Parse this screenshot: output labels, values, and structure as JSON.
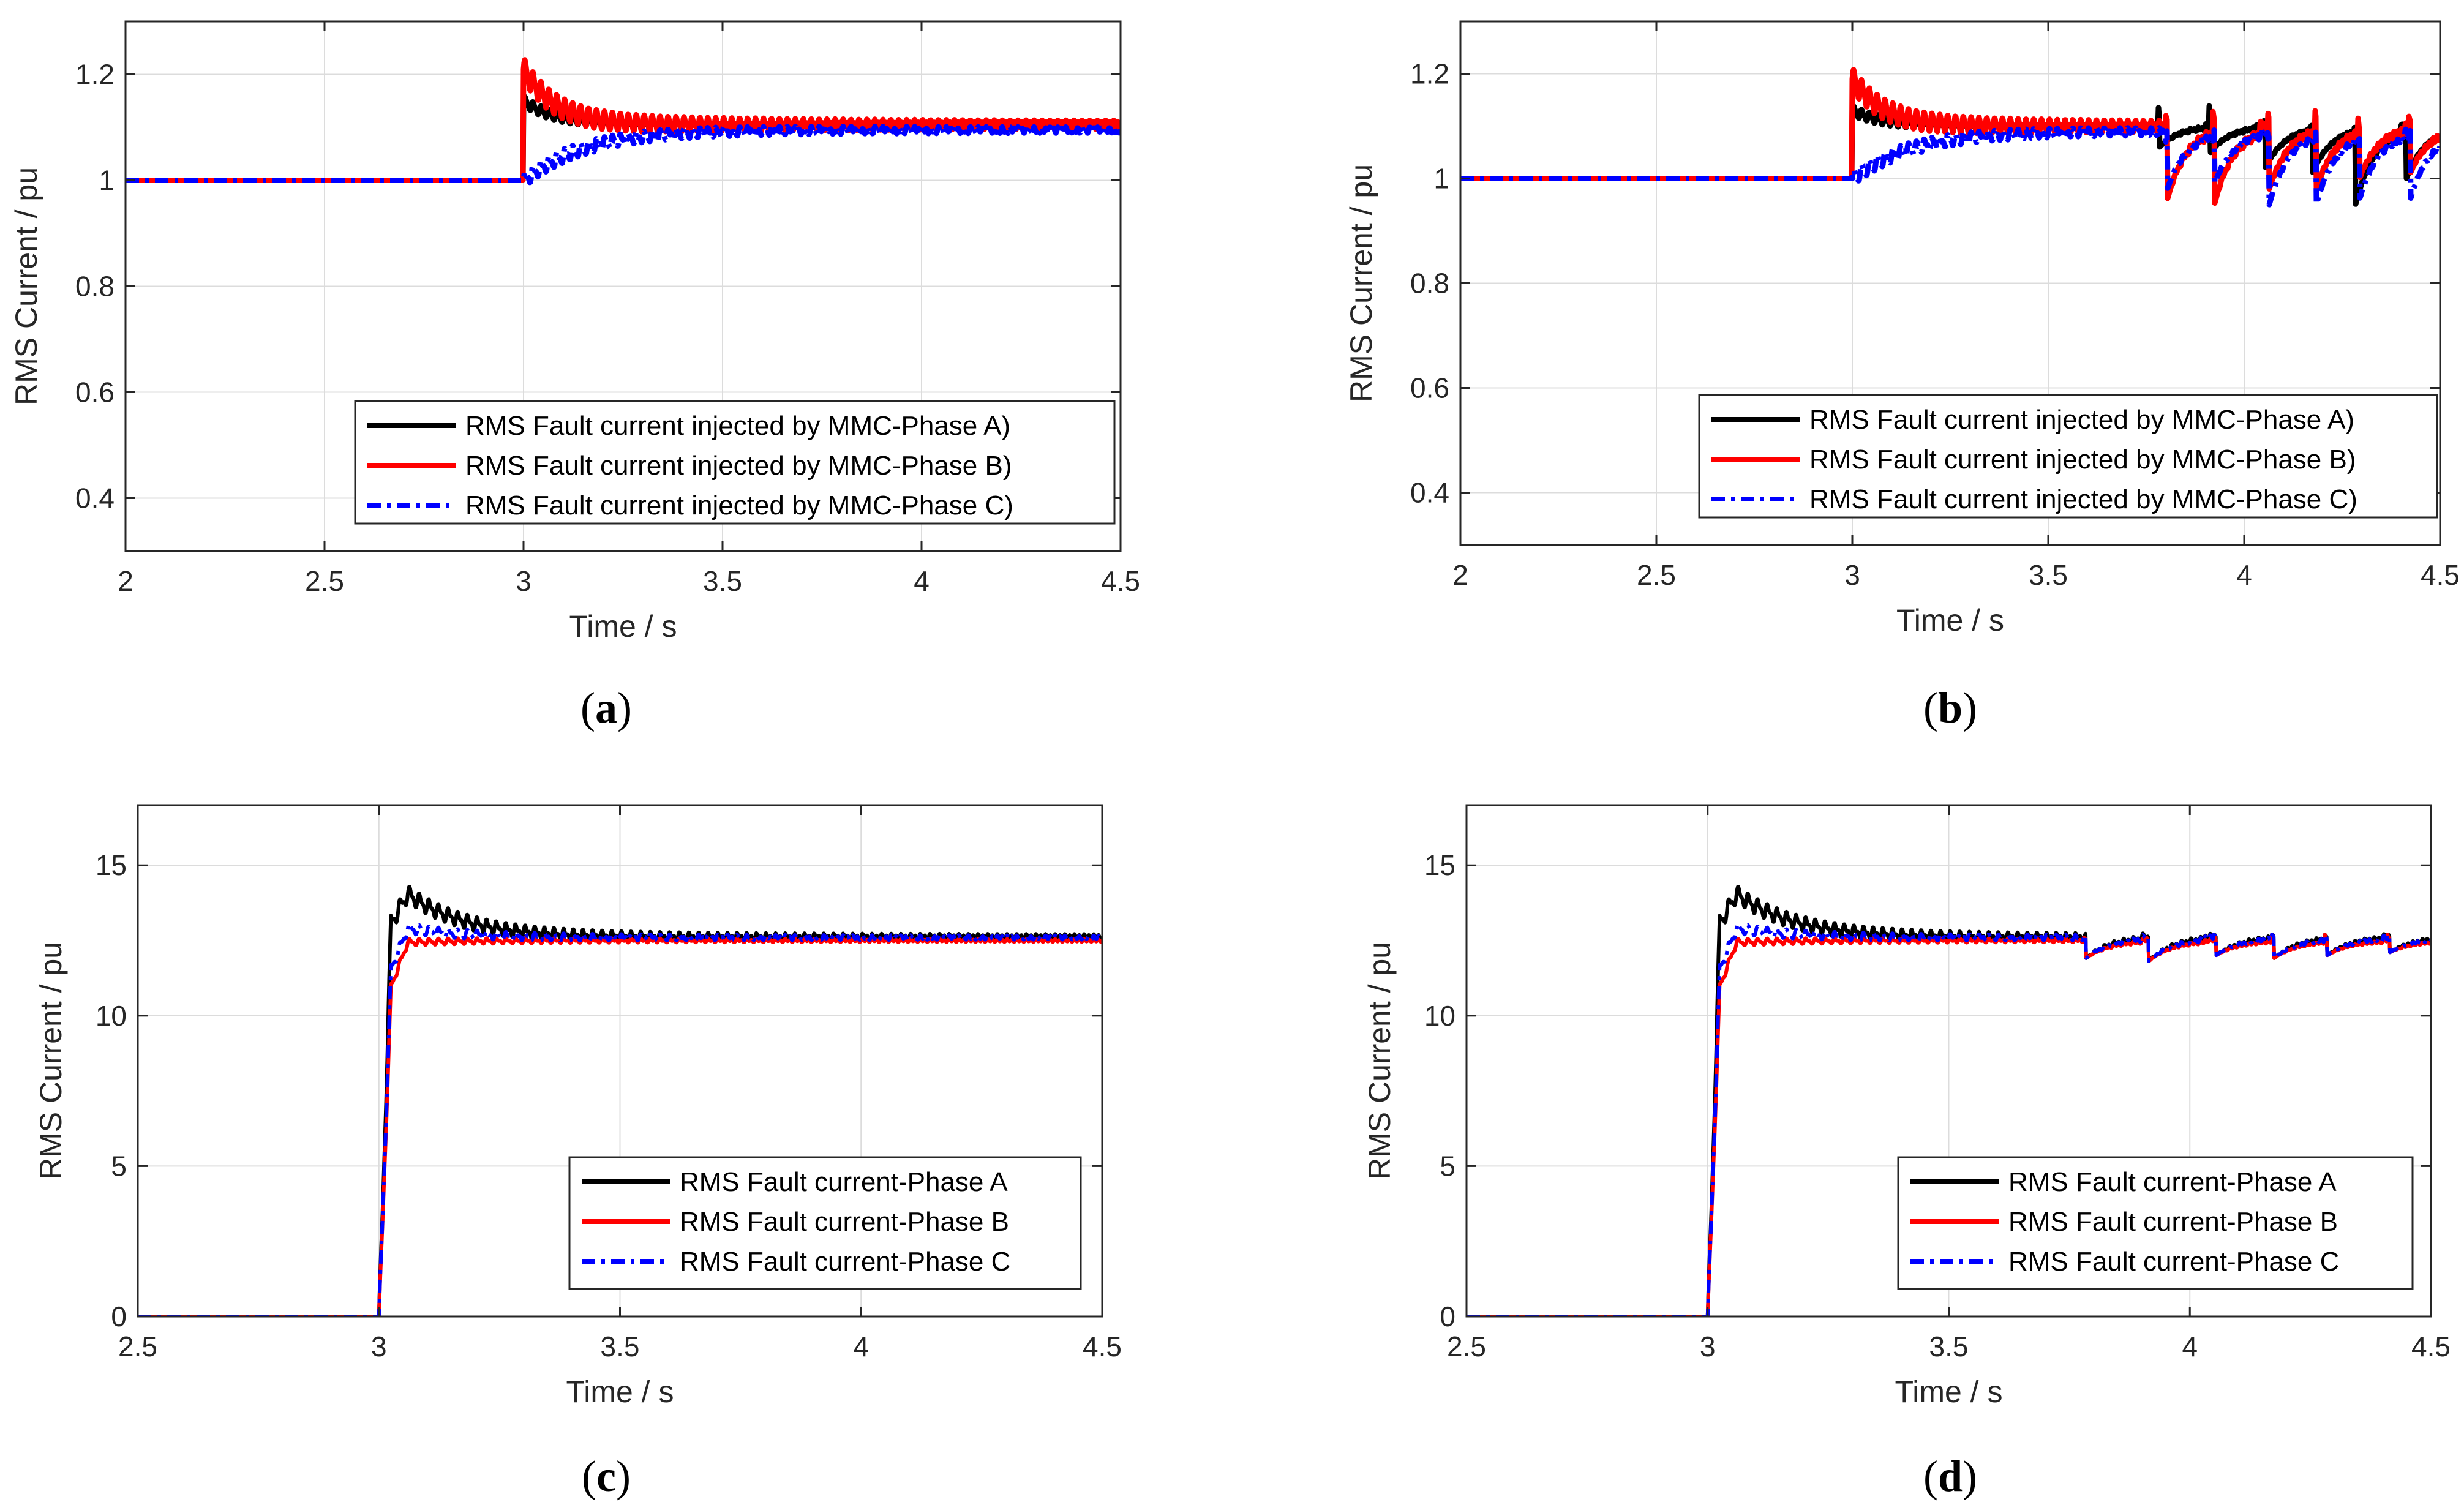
{
  "chart_data": [
    {
      "id": "a",
      "type": "line",
      "caption_letter": "a",
      "xlabel": "Time / s",
      "ylabel": "RMS Current / pu",
      "xlim": [
        2,
        4.5
      ],
      "ylim": [
        0.3,
        1.3
      ],
      "xticks": [
        2,
        2.5,
        3,
        3.5,
        4,
        4.5
      ],
      "xtick_labels": [
        "2",
        "2.5",
        "3",
        "3.5",
        "4",
        "4.5"
      ],
      "yticks": [
        0.4,
        0.6,
        0.8,
        1,
        1.2
      ],
      "ytick_labels": [
        "0.4",
        "0.6",
        "0.8",
        "1",
        "1.2"
      ],
      "grid": true,
      "legend_position": "bottom-right",
      "series": [
        {
          "name": "RMS Fault current injected by MMC-Phase A)",
          "color": "#000000",
          "style": "solid",
          "pre": 1.0,
          "step_at": 3.0,
          "peak": 1.15,
          "steady": 1.105,
          "ripple": 0.008
        },
        {
          "name": "RMS Fault current injected by MMC-Phase B)",
          "color": "#ff0000",
          "style": "solid",
          "pre": 1.0,
          "step_at": 3.0,
          "peak": 1.21,
          "steady": 1.105,
          "ripple": 0.018
        },
        {
          "name": "RMS Fault current injected by MMC-Phase C)",
          "color": "#0000ff",
          "style": "dashdot",
          "pre": 1.0,
          "step_at": 3.0,
          "peak": 1.06,
          "steady": 1.095,
          "ripple": 0.012
        }
      ],
      "dips": []
    },
    {
      "id": "b",
      "type": "line",
      "caption_letter": "b",
      "xlabel": "Time / s",
      "ylabel": "RMS Current / pu",
      "xlim": [
        2,
        4.5
      ],
      "ylim": [
        0.3,
        1.3
      ],
      "xticks": [
        2,
        2.5,
        3,
        3.5,
        4,
        4.5
      ],
      "xtick_labels": [
        "2",
        "2.5",
        "3",
        "3.5",
        "4",
        "4.5"
      ],
      "yticks": [
        0.4,
        0.6,
        0.8,
        1,
        1.2
      ],
      "ytick_labels": [
        "0.4",
        "0.6",
        "0.8",
        "1",
        "1.2"
      ],
      "grid": true,
      "legend_position": "bottom-right",
      "series": [
        {
          "name": "RMS Fault current injected by MMC-Phase A)",
          "color": "#000000",
          "style": "solid",
          "pre": 1.0,
          "step_at": 3.0,
          "peak": 1.13,
          "steady": 1.1,
          "ripple": 0.008
        },
        {
          "name": "RMS Fault current injected by MMC-Phase B)",
          "color": "#ff0000",
          "style": "solid",
          "pre": 1.0,
          "step_at": 3.0,
          "peak": 1.19,
          "steady": 1.1,
          "ripple": 0.018
        },
        {
          "name": "RMS Fault current injected by MMC-Phase C)",
          "color": "#0000ff",
          "style": "dashdot",
          "pre": 1.0,
          "step_at": 3.0,
          "peak": 1.06,
          "steady": 1.09,
          "ripple": 0.012
        }
      ],
      "dips": [
        {
          "series": 0,
          "t": 3.78,
          "depth": 1.06,
          "spike": 1.15
        },
        {
          "series": 1,
          "t": 3.8,
          "depth": 0.96,
          "spike": 1.12
        },
        {
          "series": 2,
          "t": 3.8,
          "depth": 0.98,
          "spike": 1.07
        },
        {
          "series": 0,
          "t": 3.91,
          "depth": 1.05,
          "spike": 1.15
        },
        {
          "series": 1,
          "t": 3.92,
          "depth": 0.95,
          "spike": 1.13
        },
        {
          "series": 2,
          "t": 3.92,
          "depth": 0.99,
          "spike": 1.07
        },
        {
          "series": 0,
          "t": 4.05,
          "depth": 1.02,
          "spike": 1.11
        },
        {
          "series": 1,
          "t": 4.06,
          "depth": 0.98,
          "spike": 1.13
        },
        {
          "series": 2,
          "t": 4.06,
          "depth": 0.95,
          "spike": 1.07
        },
        {
          "series": 0,
          "t": 4.17,
          "depth": 1.01,
          "spike": 1.1
        },
        {
          "series": 1,
          "t": 4.18,
          "depth": 0.98,
          "spike": 1.14
        },
        {
          "series": 2,
          "t": 4.18,
          "depth": 0.95,
          "spike": 1.07
        },
        {
          "series": 0,
          "t": 4.28,
          "depth": 0.95,
          "spike": 1.1
        },
        {
          "series": 1,
          "t": 4.29,
          "depth": 1.0,
          "spike": 1.12
        },
        {
          "series": 2,
          "t": 4.29,
          "depth": 0.96,
          "spike": 1.07
        },
        {
          "series": 0,
          "t": 4.41,
          "depth": 1.0,
          "spike": 1.09
        },
        {
          "series": 1,
          "t": 4.42,
          "depth": 1.01,
          "spike": 1.12
        },
        {
          "series": 2,
          "t": 4.42,
          "depth": 0.96,
          "spike": 1.07
        }
      ]
    },
    {
      "id": "c",
      "type": "line",
      "caption_letter": "c",
      "xlabel": "Time / s",
      "ylabel": "RMS Current / pu",
      "xlim": [
        2.5,
        4.5
      ],
      "ylim": [
        0,
        17
      ],
      "xticks": [
        2.5,
        3,
        3.5,
        4,
        4.5
      ],
      "xtick_labels": [
        "2.5",
        "3",
        "3.5",
        "4",
        "4.5"
      ],
      "yticks": [
        0,
        5,
        10,
        15
      ],
      "ytick_labels": [
        "0",
        "5",
        "10",
        "15"
      ],
      "grid": true,
      "legend_position": "bottom-right",
      "series": [
        {
          "name": "RMS Fault current-Phase A",
          "color": "#000000",
          "style": "solid",
          "pre": 0,
          "step_at": 3.0,
          "peak": 15.0,
          "steady": 12.6,
          "ripple": 0.25
        },
        {
          "name": "RMS Fault current-Phase B",
          "color": "#ff0000",
          "style": "solid",
          "pre": 0,
          "step_at": 3.0,
          "peak": 12.4,
          "steady": 12.5,
          "ripple": 0.1
        },
        {
          "name": "RMS Fault current-Phase C",
          "color": "#0000ff",
          "style": "dashdot",
          "pre": 0,
          "step_at": 3.0,
          "peak": 13.1,
          "steady": 12.6,
          "ripple": 0.15
        }
      ],
      "dips": []
    },
    {
      "id": "d",
      "type": "line",
      "caption_letter": "d",
      "xlabel": "Time / s",
      "ylabel": "RMS Current / pu",
      "xlim": [
        2.5,
        4.5
      ],
      "ylim": [
        0,
        17
      ],
      "xticks": [
        2.5,
        3,
        3.5,
        4,
        4.5
      ],
      "xtick_labels": [
        "2.5",
        "3",
        "3.5",
        "4",
        "4.5"
      ],
      "yticks": [
        0,
        5,
        10,
        15
      ],
      "ytick_labels": [
        "0",
        "5",
        "10",
        "15"
      ],
      "grid": true,
      "legend_position": "bottom-right",
      "series": [
        {
          "name": "RMS Fault current-Phase A",
          "color": "#000000",
          "style": "solid",
          "pre": 0,
          "step_at": 3.0,
          "peak": 15.0,
          "steady": 12.6,
          "ripple": 0.25
        },
        {
          "name": "RMS Fault current-Phase B",
          "color": "#ff0000",
          "style": "solid",
          "pre": 0,
          "step_at": 3.0,
          "peak": 12.4,
          "steady": 12.5,
          "ripple": 0.1
        },
        {
          "name": "RMS Fault current-Phase C",
          "color": "#0000ff",
          "style": "dashdot",
          "pre": 0,
          "step_at": 3.0,
          "peak": 13.1,
          "steady": 12.6,
          "ripple": 0.15
        }
      ],
      "dips": [
        {
          "series": 0,
          "t": 3.78,
          "depth": 11.9,
          "spike": 12.6
        },
        {
          "series": 1,
          "t": 3.78,
          "depth": 11.9,
          "spike": 12.6
        },
        {
          "series": 2,
          "t": 3.78,
          "depth": 11.9,
          "spike": 12.6
        },
        {
          "series": 0,
          "t": 3.91,
          "depth": 11.8,
          "spike": 12.6
        },
        {
          "series": 1,
          "t": 3.91,
          "depth": 11.8,
          "spike": 12.6
        },
        {
          "series": 2,
          "t": 3.91,
          "depth": 11.8,
          "spike": 12.6
        },
        {
          "series": 0,
          "t": 4.05,
          "depth": 12.0,
          "spike": 12.7
        },
        {
          "series": 1,
          "t": 4.05,
          "depth": 12.0,
          "spike": 12.7
        },
        {
          "series": 2,
          "t": 4.05,
          "depth": 12.0,
          "spike": 12.7
        },
        {
          "series": 0,
          "t": 4.17,
          "depth": 11.9,
          "spike": 12.7
        },
        {
          "series": 1,
          "t": 4.17,
          "depth": 11.9,
          "spike": 12.7
        },
        {
          "series": 2,
          "t": 4.17,
          "depth": 11.9,
          "spike": 12.7
        },
        {
          "series": 0,
          "t": 4.28,
          "depth": 12.0,
          "spike": 12.7
        },
        {
          "series": 1,
          "t": 4.28,
          "depth": 12.0,
          "spike": 12.7
        },
        {
          "series": 2,
          "t": 4.28,
          "depth": 12.0,
          "spike": 12.7
        },
        {
          "series": 0,
          "t": 4.41,
          "depth": 12.1,
          "spike": 12.7
        },
        {
          "series": 1,
          "t": 4.41,
          "depth": 12.1,
          "spike": 12.7
        },
        {
          "series": 2,
          "t": 4.41,
          "depth": 12.1,
          "spike": 12.7
        }
      ]
    }
  ]
}
